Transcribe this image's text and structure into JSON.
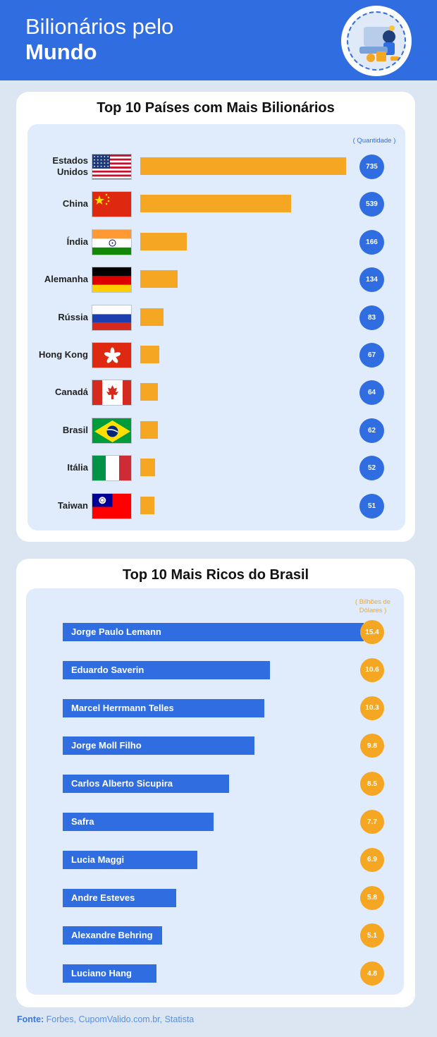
{
  "header": {
    "title_line1": "Bilionários pelo",
    "title_line2": "Mundo"
  },
  "chart_data": [
    {
      "type": "bar",
      "title": "Top 10 Países com Mais Bilionários",
      "unit_label": "( Quantidade )",
      "categories": [
        "Estados Unidos",
        "China",
        "Índia",
        "Alemanha",
        "Rússia",
        "Hong Kong",
        "Canadá",
        "Brasil",
        "Itália",
        "Taiwan"
      ],
      "values": [
        735,
        539,
        166,
        134,
        83,
        67,
        64,
        62,
        52,
        51
      ],
      "flags": [
        "us-flag-icon",
        "china-flag-icon",
        "india-flag-icon",
        "germany-flag-icon",
        "russia-flag-icon",
        "hong-kong-flag-icon",
        "canada-flag-icon",
        "brazil-flag-icon",
        "italy-flag-icon",
        "taiwan-flag-icon"
      ],
      "bar_color": "#f5a623",
      "value_badge_color": "#2f6de0"
    },
    {
      "type": "bar",
      "title": "Top 10 Mais Ricos do Brasil",
      "unit_label": "( Bilhões de Dólares )",
      "categories": [
        "Jorge Paulo Lemann",
        "Eduardo Saverin",
        "Marcel Herrmann Telles",
        "Jorge Moll Filho",
        "Carlos Alberto Sicupira",
        "Safra",
        "Lucia Maggi",
        "Andre Esteves",
        "Alexandre Behring",
        "Luciano Hang"
      ],
      "values": [
        15.4,
        10.6,
        10.3,
        9.8,
        8.5,
        7.7,
        6.9,
        5.8,
        5.1,
        4.8
      ],
      "bar_color": "#2f6de0",
      "value_badge_color": "#f5a623"
    }
  ],
  "footer": {
    "label": "Fonte:",
    "sources": "Forbes, CupomValido.com.br, Statista"
  },
  "colors": {
    "header": "#2f6de0",
    "page_bg": "#dce6f2",
    "panel_bg": "#e0ecfb"
  }
}
